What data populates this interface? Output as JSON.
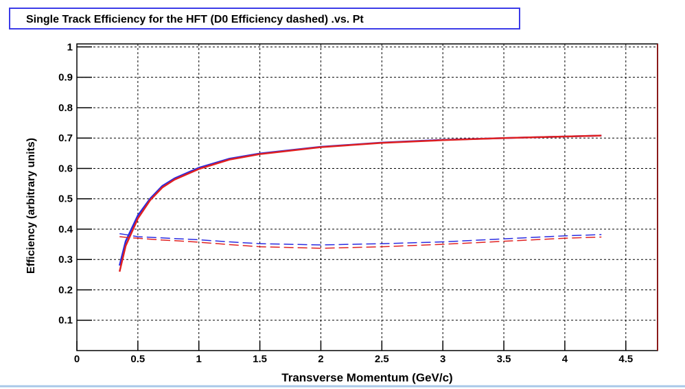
{
  "chart_data": {
    "type": "line",
    "title": "Single Track Efficiency for the HFT (D0 Efficiency dashed) .vs. Pt",
    "x_label": "Transverse Momentum (GeV/c)",
    "y_label": "Efficiency (arbitrary units)",
    "x": [
      0.35,
      0.4,
      0.5,
      0.6,
      0.7,
      0.8,
      1.0,
      1.25,
      1.5,
      2.0,
      2.5,
      3.0,
      3.5,
      4.0,
      4.3
    ],
    "series": [
      {
        "color": "#2a2ae0",
        "dashed": false,
        "values": [
          0.28,
          0.36,
          0.445,
          0.5,
          0.542,
          0.567,
          0.602,
          0.632,
          0.649,
          0.671,
          0.685,
          0.694,
          0.7,
          0.705,
          0.708
        ]
      },
      {
        "color": "#e02020",
        "dashed": false,
        "values": [
          0.26,
          0.345,
          0.435,
          0.495,
          0.537,
          0.563,
          0.598,
          0.629,
          0.647,
          0.67,
          0.684,
          0.693,
          0.7,
          0.705,
          0.708
        ]
      },
      {
        "color": "#2a2ae0",
        "dashed": true,
        "values": [
          0.385,
          0.382,
          0.375,
          0.373,
          0.371,
          0.369,
          0.365,
          0.358,
          0.352,
          0.348,
          0.352,
          0.358,
          0.368,
          0.378,
          0.382
        ]
      },
      {
        "color": "#e02020",
        "dashed": true,
        "values": [
          0.375,
          0.373,
          0.37,
          0.367,
          0.364,
          0.362,
          0.357,
          0.349,
          0.342,
          0.337,
          0.342,
          0.35,
          0.36,
          0.37,
          0.374
        ]
      }
    ],
    "xlim": [
      0,
      4.76
    ],
    "ylim": [
      0,
      1.01
    ],
    "xticks": [
      0,
      0.5,
      1,
      1.5,
      2,
      2.5,
      3,
      3.5,
      4,
      4.5
    ],
    "yticks": [
      0.1,
      0.2,
      0.3,
      0.4,
      0.5,
      0.6,
      0.7,
      0.8,
      0.9,
      1
    ],
    "grid": true
  }
}
